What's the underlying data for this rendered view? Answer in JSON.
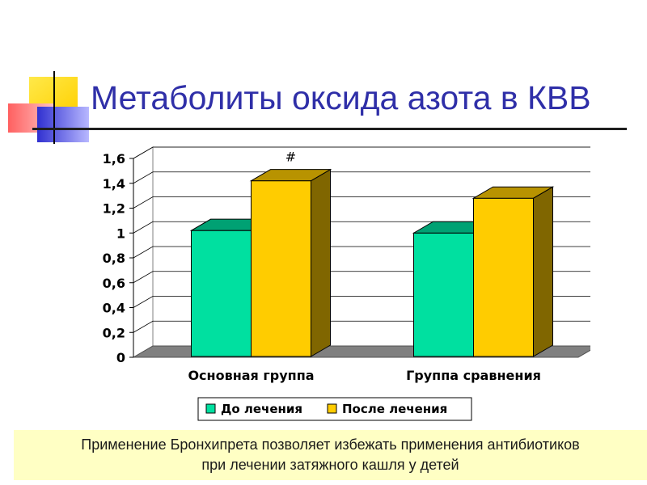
{
  "slide": {
    "title": "Метаболиты оксида азота в КВВ",
    "note_line1": "Применение Бронхипрета позволяет избежать применения антибиотиков",
    "note_line2": "при лечении затяжного кашля у детей"
  },
  "colors": {
    "title": "#2f2fa8",
    "series_before": "#00e0a0",
    "series_after": "#ffcc00",
    "floor": "#808080",
    "note_bg": "#ffffc4"
  },
  "chart_data": {
    "type": "bar",
    "title": "",
    "xlabel": "",
    "ylabel": "",
    "categories": [
      "Основная группа",
      "Группа сравнения"
    ],
    "series": [
      {
        "name": "До лечения",
        "values": [
          1.02,
          1.0
        ]
      },
      {
        "name": "После лечения",
        "values": [
          1.42,
          1.28
        ]
      }
    ],
    "annotations": [
      {
        "text": "#",
        "category": "Основная группа",
        "series": "После лечения"
      }
    ],
    "ylim": [
      0,
      1.6
    ],
    "yticks": [
      "0",
      "0,2",
      "0,4",
      "0,6",
      "0,8",
      "1",
      "1,2",
      "1,4",
      "1,6"
    ],
    "grid": true,
    "legend_position": "bottom",
    "style": "3d"
  }
}
